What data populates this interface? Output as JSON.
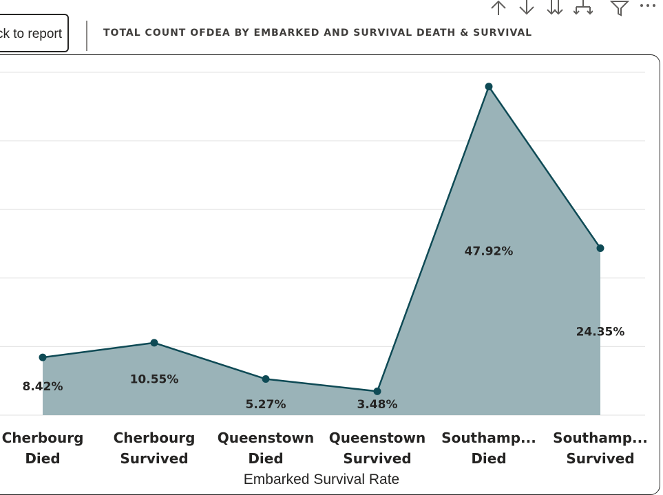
{
  "report": {
    "back_button_label": "Back to report"
  },
  "visual": {
    "title": "TOTAL COUNT OFDEA BY EMBARKED AND SURVIVAL DEATH & SURVIVAL"
  },
  "toolbar": {
    "icons": [
      "arrow-up-icon",
      "arrow-down-icon",
      "double-arrow-down-icon",
      "expand-hierarchy-icon",
      "filter-icon",
      "more-options-icon"
    ]
  },
  "chart_data": {
    "type": "area",
    "categories": [
      [
        "Cherbourg",
        "Died"
      ],
      [
        "Cherbourg",
        "Survived"
      ],
      [
        "Queenstown",
        "Died"
      ],
      [
        "Queenstown",
        "Survived"
      ],
      [
        "Southamp...",
        "Died"
      ],
      [
        "Southamp...",
        "Survived"
      ]
    ],
    "values": [
      8.42,
      10.55,
      5.27,
      3.48,
      47.92,
      24.35
    ],
    "data_labels": [
      "8.42%",
      "10.55%",
      "5.27%",
      "3.48%",
      "47.92%",
      "24.35%"
    ],
    "xlabel": "Embarked Survival Rate",
    "ylabel": "",
    "ylim": [
      0,
      50
    ],
    "grid": true,
    "colors": {
      "line": "#0E4A55",
      "fill": "#9AB3B8",
      "grid": "#E6E6E6"
    }
  }
}
